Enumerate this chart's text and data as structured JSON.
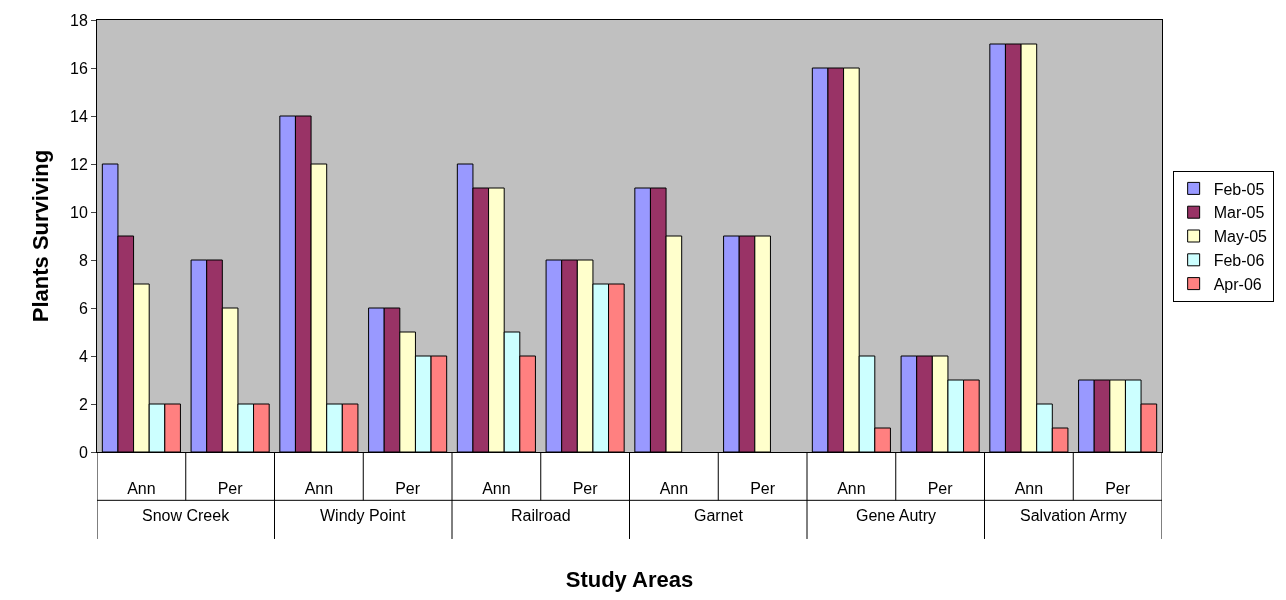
{
  "chart_data": {
    "type": "bar",
    "xlabel": "Study Areas",
    "ylabel": "Plants Surviving",
    "categories": [
      "Ann",
      "Per",
      "Ann",
      "Per",
      "Ann",
      "Per",
      "Ann",
      "Per",
      "Ann",
      "Per",
      "Ann",
      "Per"
    ],
    "annotations": [
      "Snow Creek",
      "Windy Point",
      "Railroad",
      "Garnet",
      "Gene Autry",
      "Salvation Army"
    ],
    "series": [
      {
        "name": "Feb-05",
        "color": "#9999ff",
        "values": [
          12,
          8,
          14,
          6,
          12,
          8,
          11,
          9,
          16,
          4,
          17,
          3
        ]
      },
      {
        "name": "Mar-05",
        "color": "#993366",
        "values": [
          9,
          8,
          14,
          6,
          11,
          8,
          11,
          9,
          16,
          4,
          17,
          3
        ]
      },
      {
        "name": "May-05",
        "color": "#ffffcc",
        "values": [
          7,
          6,
          12,
          5,
          11,
          8,
          9,
          9,
          16,
          4,
          17,
          3
        ]
      },
      {
        "name": "Feb-06",
        "color": "#ccffff",
        "values": [
          2,
          2,
          2,
          4,
          5,
          7,
          null,
          null,
          4,
          3,
          2,
          3
        ]
      },
      {
        "name": "Apr-06",
        "color": "#ff8080",
        "values": [
          2,
          2,
          2,
          4,
          4,
          7,
          null,
          null,
          1,
          3,
          1,
          2
        ]
      }
    ],
    "ylim": [
      0,
      18
    ],
    "yticks": [
      0,
      2,
      4,
      6,
      8,
      10,
      12,
      14,
      16,
      18
    ],
    "grid": false,
    "legend": "right"
  }
}
